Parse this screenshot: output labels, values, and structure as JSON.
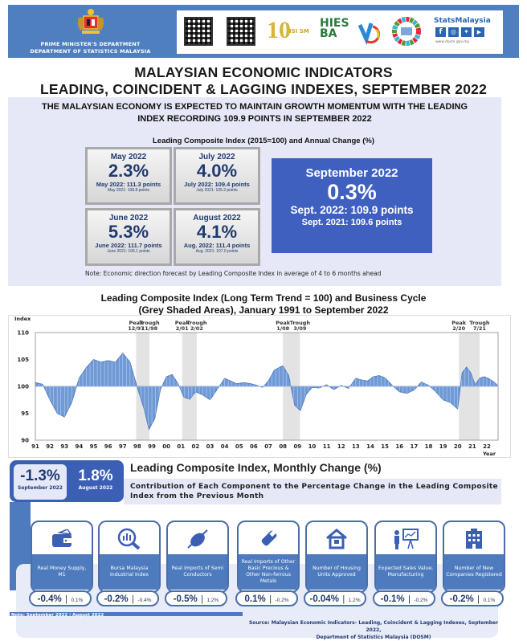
{
  "header": {
    "dept_line1": "PRIME MINISTER'S DEPARTMENT",
    "dept_line2": "DEPARTMENT OF STATISTICS MALAYSIA",
    "logos": [
      "qr-code-1",
      "qr-code-2",
      "10-years-isim",
      "hies-ba-2022",
      "logo-v",
      "sdg-wheel",
      "statsmalaysia"
    ],
    "stats_brand": "StatsMalaysia",
    "website": "www.dosm.gov.my"
  },
  "title": {
    "line1": "MALAYSIAN ECONOMIC INDICATORS",
    "line2": "LEADING, COINCIDENT & LAGGING INDEXES, SEPTEMBER 2022"
  },
  "summary": {
    "headline_line1": "THE MALAYSIAN ECONOMY IS EXPECTED TO MAINTAIN GROWTH MOMENTUM WITH THE LEADING",
    "headline_line2": "INDEX RECORDING 109.9 POINTS IN SEPTEMBER 2022",
    "subtitle": "Leading Composite Index (2015=100) and Annual Change (%)",
    "cards": [
      {
        "month": "May 2022",
        "pct": "2.3%",
        "points": "May 2022: 111.3 points",
        "prev": "May 2021: 108.8 points"
      },
      {
        "month": "July 2022",
        "pct": "4.0%",
        "points": "July 2022: 109.4 points",
        "prev": "July 2021: 105.2 points"
      },
      {
        "month": "June 2022",
        "pct": "5.3%",
        "points": "June 2022: 111.7 points",
        "prev": "June 2021: 106.1 points"
      },
      {
        "month": "August 2022",
        "pct": "4.1%",
        "points": "Aug. 2022: 111.4 points",
        "prev": "Aug. 2021: 107.0 points"
      }
    ],
    "highlight": {
      "month": "September 2022",
      "pct": "0.3%",
      "points": "Sept. 2022: 109.9 points",
      "prev": "Sept. 2021: 109.6 points"
    },
    "note": "Note: Economic direction forecast by Leading Composite Index in average of 4 to 6 months ahead",
    "highlight_color": "#4060c0"
  },
  "chart_data": {
    "type": "area",
    "title": "Leading Composite Index (Long Term Trend = 100) and Business Cycle (Grey Shaded Areas), January 1991 to September 2022",
    "xlabel": "Year",
    "ylabel": "Index",
    "ylim": [
      90,
      110
    ],
    "yticks": [
      90,
      95,
      100,
      105,
      110
    ],
    "xticks": [
      "91",
      "92",
      "93",
      "94",
      "95",
      "96",
      "97",
      "98",
      "99",
      "00",
      "01",
      "02",
      "03",
      "04",
      "05",
      "06",
      "07",
      "08",
      "09",
      "10",
      "11",
      "12",
      "13",
      "14",
      "15",
      "16",
      "17",
      "18",
      "19",
      "20",
      "21",
      "22"
    ],
    "baseline": 100,
    "series_color": "#6f9ad6",
    "x": [
      1991.0,
      1991.5,
      1992.0,
      1992.5,
      1993.0,
      1993.5,
      1994.0,
      1994.5,
      1995.0,
      1995.5,
      1996.0,
      1996.5,
      1997.0,
      1997.5,
      1998.0,
      1998.5,
      1998.8,
      1999.2,
      1999.6,
      2000.0,
      2000.4,
      2000.8,
      2001.2,
      2001.6,
      2002.0,
      2002.5,
      2003.0,
      2003.5,
      2004.0,
      2004.4,
      2004.8,
      2005.3,
      2005.8,
      2006.2,
      2006.6,
      2007.0,
      2007.4,
      2007.8,
      2008.0,
      2008.4,
      2008.8,
      2009.2,
      2009.6,
      2010.0,
      2010.5,
      2011.0,
      2011.5,
      2012.0,
      2012.5,
      2013.0,
      2013.4,
      2013.8,
      2014.2,
      2014.6,
      2015.0,
      2015.5,
      2016.0,
      2016.5,
      2017.0,
      2017.5,
      2018.0,
      2018.5,
      2019.0,
      2019.5,
      2020.0,
      2020.3,
      2020.6,
      2020.9,
      2021.2,
      2021.5,
      2021.8,
      2022.1,
      2022.5,
      2022.7
    ],
    "values": [
      100.7,
      100.4,
      97.5,
      95.0,
      94.3,
      97.0,
      101.5,
      103.5,
      105.0,
      104.5,
      104.8,
      104.5,
      106.2,
      104.5,
      99.8,
      95.5,
      92.0,
      94.0,
      99.5,
      101.8,
      102.2,
      100.5,
      98.0,
      97.6,
      99.0,
      98.4,
      97.5,
      99.5,
      101.5,
      101.0,
      100.5,
      100.7,
      100.5,
      100.2,
      99.8,
      101.0,
      103.0,
      103.6,
      103.8,
      102.0,
      96.5,
      95.5,
      98.5,
      99.8,
      99.7,
      100.3,
      99.4,
      100.2,
      99.6,
      101.5,
      101.2,
      101.0,
      101.8,
      102.0,
      101.6,
      100.2,
      99.0,
      98.7,
      99.3,
      100.8,
      100.2,
      99.0,
      97.5,
      97.0,
      95.8,
      102.5,
      103.6,
      102.5,
      100.3,
      101.5,
      101.8,
      101.5,
      100.8,
      100.3
    ],
    "shaded_periods": [
      {
        "start": 1997.92,
        "end": 1998.83,
        "labels": [
          "Peak 12/97",
          "Trough 11/98"
        ]
      },
      {
        "start": 2001.08,
        "end": 2002.08,
        "labels": [
          "Peak 2/01",
          "Trough 2/02"
        ]
      },
      {
        "start": 2008.0,
        "end": 2009.17,
        "labels": [
          "Peak 1/08",
          "Trough 3/09"
        ]
      },
      {
        "start": 2020.08,
        "end": 2021.5,
        "labels": [
          "Peak 2/20",
          "Trough 7/21"
        ]
      }
    ]
  },
  "chart_labels": {
    "title_line1": "Leading Composite Index (Long Term Trend = 100) and Business Cycle",
    "title_line2": "(Grey Shaded Areas), January 1991 to September 2022",
    "y_axis": "Index",
    "x_axis": "Year"
  },
  "monthly": {
    "title": "Leading Composite Index, Monthly Change (%)",
    "sub_line1": "Contribution of Each Component to the Percentage Change in the Leading Composite",
    "sub_line2": "Index from the Previous Month",
    "current": {
      "pct": "-1.3%",
      "label": "September 2022"
    },
    "previous": {
      "pct": "1.8%",
      "label": "August 2022"
    },
    "components": [
      {
        "icon": "wallet-icon",
        "label": "Real Money Supply, M1",
        "sep": "-0.4%",
        "aug": "0.1%"
      },
      {
        "icon": "magnifier-chart-icon",
        "label": "Bursa Malaysia Industrial Index",
        "sep": "-0.2%",
        "aug": "-0.4%"
      },
      {
        "icon": "chip-icon",
        "label": "Real Imports of Semi Conductors",
        "sep": "-0.5%",
        "aug": "1.2%"
      },
      {
        "icon": "metal-bar-icon",
        "label": "Real Imports of Other Basic Precious & Other Non-ferrous Metals",
        "sep": "0.1%",
        "aug": "-0.2%"
      },
      {
        "icon": "house-icon",
        "label": "Number of Housing Units Approved",
        "sep": "-0.04%",
        "aug": "1.2%"
      },
      {
        "icon": "presentation-icon",
        "label": "Expected Sales Value, Manufacturing",
        "sep": "-0.1%",
        "aug": "-0.2%"
      },
      {
        "icon": "building-icon",
        "label": "Number of New Companies Registered",
        "sep": "-0.2%",
        "aug": "0.1%"
      }
    ],
    "note": "Note: September 2022 | August 2022",
    "pipe": "|"
  },
  "source": {
    "line1": "Source: Malaysian Economic Indicators- Leading, Coincident & Lagging Indexes, September 2022,",
    "line2": "Department of Statistics Malaysia (DOSM)"
  }
}
